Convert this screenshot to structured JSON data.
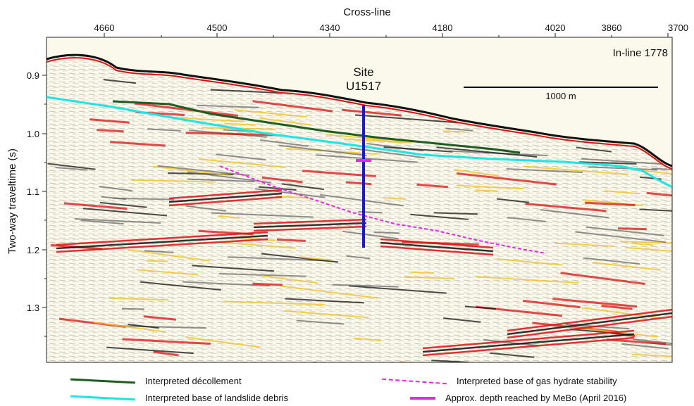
{
  "figure": {
    "top_axis_title": "Cross-line",
    "top_ticks": [
      "4660",
      "4500",
      "4340",
      "4180",
      "4020",
      "3860",
      "3700"
    ],
    "y_axis_title": "Two-way traveltime (s)",
    "y_ticks": [
      "0.9",
      "1.0",
      "1.1",
      "1.2",
      "1.3"
    ],
    "inline_label": "In-line 1778",
    "site_label_1": "Site",
    "site_label_2": "U1517",
    "scale_label": "1000 m"
  },
  "legend": {
    "decollement": "Interpreted décollement",
    "landslide": "Interpreted base of landslide debris",
    "gas_hydrate": "Interpreted base of gas hydrate stability",
    "mebo": "Approx. depth reached by MeBo (April 2016)"
  },
  "colors": {
    "decollement": "#1b5e20",
    "landslide": "#19e6e6",
    "gas_hydrate": "#ee22ee",
    "mebo": "#ee22ee",
    "borehole": "#1a1acc",
    "reflector_strong": "#e01010",
    "reflector_weak": "#f2c21a",
    "background": "#fbf9ec"
  }
}
